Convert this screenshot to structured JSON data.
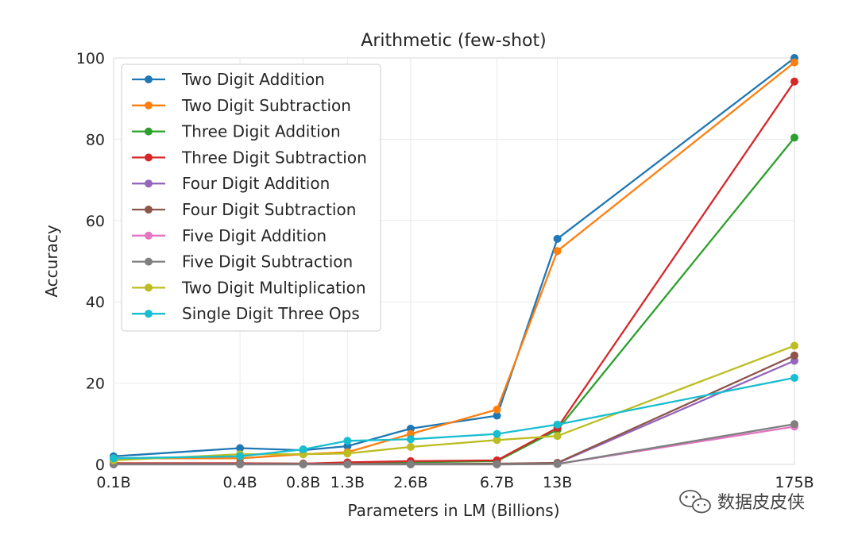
{
  "chart_data": {
    "type": "line",
    "title": "Arithmetic (few-shot)",
    "xlabel": "Parameters in LM (Billions)",
    "ylabel": "Accuracy",
    "ylim": [
      0,
      100
    ],
    "yticks": [
      0,
      20,
      40,
      60,
      80,
      100
    ],
    "x_scale": "log",
    "x": [
      0.1,
      0.4,
      0.8,
      1.3,
      2.6,
      6.7,
      13,
      175
    ],
    "x_tick_labels": [
      "0.1B",
      "0.4B",
      "0.8B",
      "1.3B",
      "2.6B",
      "6.7B",
      "13B",
      "175B"
    ],
    "grid": true,
    "legend_position": "top-left",
    "series": [
      {
        "name": "Two Digit Addition",
        "color": "#1f77b4",
        "values": [
          2.0,
          4.0,
          3.5,
          4.5,
          8.8,
          12.0,
          55.5,
          100.0
        ]
      },
      {
        "name": "Two Digit Subtraction",
        "color": "#ff7f0e",
        "values": [
          1.5,
          1.5,
          2.5,
          3.0,
          7.5,
          13.5,
          52.5,
          98.9
        ]
      },
      {
        "name": "Three Digit Addition",
        "color": "#2ca02c",
        "values": [
          0.3,
          0.3,
          0.2,
          0.3,
          0.5,
          0.8,
          8.5,
          80.4
        ]
      },
      {
        "name": "Three Digit Subtraction",
        "color": "#d62728",
        "values": [
          0.3,
          0.3,
          0.2,
          0.5,
          0.8,
          1.0,
          9.0,
          94.2
        ]
      },
      {
        "name": "Four Digit Addition",
        "color": "#9467bd",
        "values": [
          0.1,
          0.1,
          0.1,
          0.1,
          0.1,
          0.1,
          0.3,
          25.5
        ]
      },
      {
        "name": "Four Digit Subtraction",
        "color": "#8c564b",
        "values": [
          0.1,
          0.1,
          0.1,
          0.1,
          0.1,
          0.2,
          0.4,
          26.8
        ]
      },
      {
        "name": "Five Digit Addition",
        "color": "#e377c2",
        "values": [
          0.0,
          0.0,
          0.0,
          0.0,
          0.0,
          0.0,
          0.1,
          9.3
        ]
      },
      {
        "name": "Five Digit Subtraction",
        "color": "#7f7f7f",
        "values": [
          0.0,
          0.0,
          0.0,
          0.0,
          0.0,
          0.0,
          0.1,
          9.9
        ]
      },
      {
        "name": "Two Digit Multiplication",
        "color": "#bcbd22",
        "values": [
          1.0,
          2.5,
          2.5,
          2.7,
          4.3,
          6.0,
          7.0,
          29.2
        ]
      },
      {
        "name": "Single Digit Three Ops",
        "color": "#17becf",
        "values": [
          1.5,
          2.0,
          3.7,
          5.8,
          6.2,
          7.5,
          9.8,
          21.3
        ]
      }
    ]
  },
  "watermark": {
    "text": "数据皮皮侠",
    "icon": "wechat-bubble-icon"
  }
}
